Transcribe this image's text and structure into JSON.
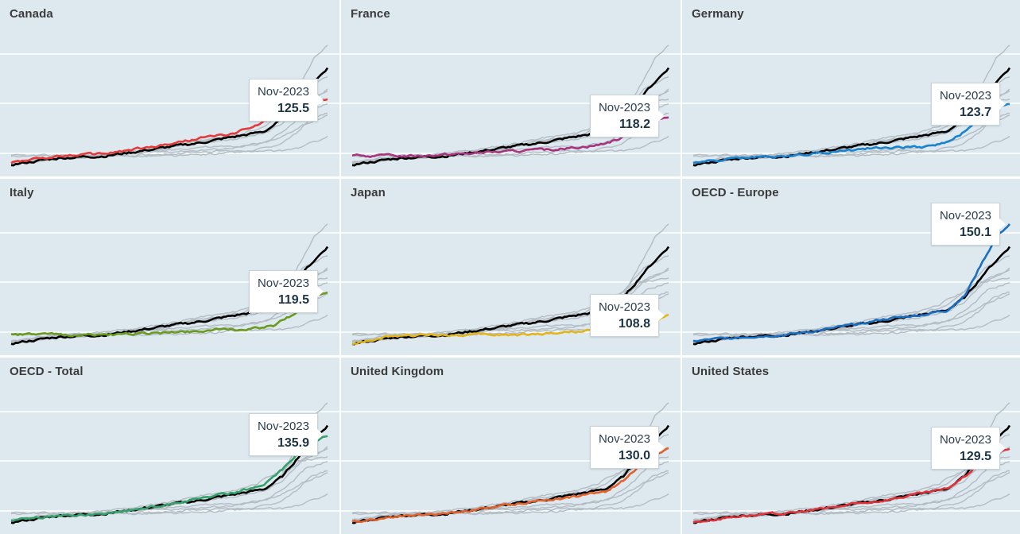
{
  "chart_data": {
    "type": "line",
    "layout": "small-multiples 3x3",
    "highlight_date": "Nov-2023",
    "reference_series_color": "#000000",
    "background_series_color": "#b4bcc4",
    "x_range": [
      2000,
      2023.9
    ],
    "y_range": [
      95,
      160
    ],
    "panels": [
      {
        "name": "Canada",
        "value": "125.5",
        "color": "#e33b3b",
        "shape": [
          [
            0,
            97
          ],
          [
            0.15,
            100
          ],
          [
            0.3,
            101
          ],
          [
            0.45,
            104
          ],
          [
            0.6,
            108
          ],
          [
            0.7,
            110
          ],
          [
            0.78,
            114
          ],
          [
            0.85,
            119
          ],
          [
            0.9,
            124
          ],
          [
            1,
            125.5
          ]
        ]
      },
      {
        "name": "France",
        "value": "118.2",
        "color": "#a8337f",
        "shape": [
          [
            0,
            100
          ],
          [
            0.2,
            100
          ],
          [
            0.35,
            101
          ],
          [
            0.5,
            102
          ],
          [
            0.65,
            103
          ],
          [
            0.78,
            105
          ],
          [
            0.85,
            108
          ],
          [
            0.92,
            114
          ],
          [
            1,
            118.2
          ]
        ]
      },
      {
        "name": "Germany",
        "value": "123.7",
        "color": "#1a83cf",
        "shape": [
          [
            0,
            97
          ],
          [
            0.15,
            99
          ],
          [
            0.3,
            100
          ],
          [
            0.45,
            102
          ],
          [
            0.6,
            104
          ],
          [
            0.72,
            104
          ],
          [
            0.8,
            106
          ],
          [
            0.87,
            112
          ],
          [
            0.93,
            120
          ],
          [
            1,
            123.7
          ]
        ]
      },
      {
        "name": "Italy",
        "value": "119.5",
        "color": "#6a9a1f",
        "shape": [
          [
            0,
            100
          ],
          [
            0.2,
            100
          ],
          [
            0.35,
            100
          ],
          [
            0.5,
            101
          ],
          [
            0.62,
            102
          ],
          [
            0.75,
            102.5
          ],
          [
            0.83,
            104
          ],
          [
            0.9,
            110
          ],
          [
            0.95,
            117
          ],
          [
            1,
            119.5
          ]
        ]
      },
      {
        "name": "Japan",
        "value": "108.8",
        "color": "#e2b51c",
        "shape": [
          [
            0,
            96
          ],
          [
            0.1,
            99
          ],
          [
            0.25,
            100
          ],
          [
            0.4,
            100
          ],
          [
            0.55,
            100
          ],
          [
            0.65,
            101
          ],
          [
            0.75,
            102
          ],
          [
            0.85,
            102
          ],
          [
            0.92,
            104
          ],
          [
            1,
            108.8
          ]
        ]
      },
      {
        "name": "OECD - Europe",
        "value": "150.1",
        "color": "#1a6fc0",
        "shape": [
          [
            0,
            97
          ],
          [
            0.15,
            99
          ],
          [
            0.3,
            100
          ],
          [
            0.45,
            103
          ],
          [
            0.6,
            107
          ],
          [
            0.72,
            109
          ],
          [
            0.8,
            111
          ],
          [
            0.86,
            118
          ],
          [
            0.91,
            132
          ],
          [
            0.96,
            145
          ],
          [
            1,
            150.1
          ]
        ]
      },
      {
        "name": "OECD - Total",
        "value": "135.9",
        "color": "#35a06c",
        "shape": [
          [
            0,
            97
          ],
          [
            0.15,
            99
          ],
          [
            0.3,
            100
          ],
          [
            0.45,
            103
          ],
          [
            0.6,
            107
          ],
          [
            0.72,
            110
          ],
          [
            0.8,
            113
          ],
          [
            0.86,
            120
          ],
          [
            0.92,
            130
          ],
          [
            1,
            135.9
          ]
        ]
      },
      {
        "name": "United Kingdom",
        "value": "130.0",
        "color": "#e2622b",
        "shape": [
          [
            0,
            96
          ],
          [
            0.15,
            99
          ],
          [
            0.3,
            100
          ],
          [
            0.45,
            103
          ],
          [
            0.6,
            106
          ],
          [
            0.72,
            108
          ],
          [
            0.8,
            110
          ],
          [
            0.86,
            115
          ],
          [
            0.92,
            124
          ],
          [
            1,
            130
          ]
        ]
      },
      {
        "name": "United States",
        "value": "129.5",
        "color": "#e0343a",
        "shape": [
          [
            0,
            96
          ],
          [
            0.15,
            99
          ],
          [
            0.3,
            100
          ],
          [
            0.45,
            103
          ],
          [
            0.6,
            106
          ],
          [
            0.72,
            109
          ],
          [
            0.8,
            111
          ],
          [
            0.86,
            117
          ],
          [
            0.92,
            125
          ],
          [
            1,
            129.5
          ]
        ]
      }
    ],
    "reference_shape": [
      [
        0,
        96
      ],
      [
        0.15,
        99
      ],
      [
        0.3,
        100
      ],
      [
        0.45,
        103
      ],
      [
        0.6,
        106
      ],
      [
        0.72,
        109
      ],
      [
        0.8,
        111
      ],
      [
        0.86,
        117
      ],
      [
        0.92,
        128
      ],
      [
        1,
        140
      ]
    ]
  }
}
